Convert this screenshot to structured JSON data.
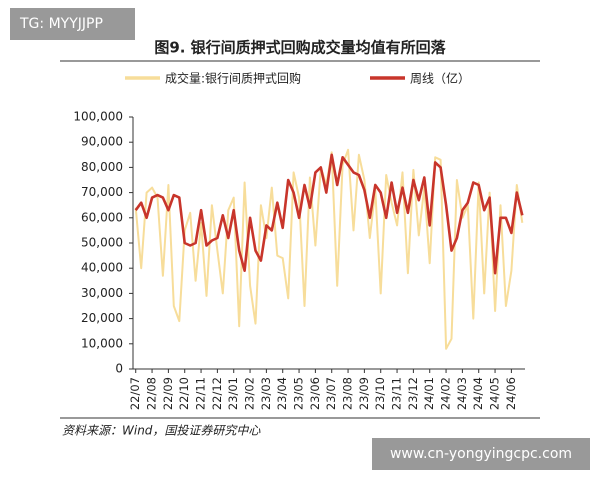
{
  "watermark_top": "TG: MYYJJPP",
  "watermark_bottom": "www.cn-yongyingcpc.com",
  "chart_data": {
    "type": "line",
    "title": "图9. 银行间质押式回购成交量均值有所回落",
    "source": "资料来源：Wind，国投证券研究中心",
    "categories": [
      "22/07",
      null,
      null,
      "22/08",
      null,
      null,
      "22/09",
      null,
      null,
      "22/10",
      null,
      null,
      "22/11",
      null,
      null,
      "22/12",
      null,
      null,
      "23/01",
      null,
      null,
      "23/02",
      null,
      null,
      "23/03",
      null,
      null,
      "23/04",
      null,
      null,
      "23/05",
      null,
      null,
      "23/06",
      null,
      null,
      "23/07",
      null,
      null,
      "23/08",
      null,
      null,
      "23/09",
      null,
      null,
      "23/10",
      null,
      null,
      "23/11",
      null,
      null,
      "23/12",
      null,
      null,
      "24/01",
      null,
      null,
      "24/02",
      null,
      null,
      "24/03",
      null,
      null,
      "24/04",
      null,
      null,
      "24/05",
      null,
      null,
      "24/06",
      null,
      null
    ],
    "series": [
      {
        "name": "成交量:银行间质押式回购",
        "color": "#f7dd9a",
        "width": 2,
        "values": [
          64000,
          40000,
          70000,
          72000,
          68000,
          37000,
          73000,
          25000,
          19000,
          55000,
          62000,
          35000,
          58000,
          29000,
          65000,
          47000,
          30000,
          63000,
          68000,
          17000,
          74000,
          33000,
          18000,
          65000,
          52000,
          72000,
          45000,
          44000,
          28000,
          78000,
          68000,
          25000,
          76000,
          49000,
          80000,
          73000,
          86000,
          33000,
          81000,
          87000,
          55000,
          85000,
          75000,
          52000,
          71000,
          30000,
          77000,
          66000,
          57000,
          78000,
          38000,
          79000,
          53000,
          72000,
          42000,
          84000,
          83000,
          8000,
          12000,
          75000,
          60000,
          65000,
          20000,
          74000,
          30000,
          70000,
          23000,
          65000,
          25000,
          39000,
          73000,
          58000
        ]
      },
      {
        "name": "周线（亿）",
        "color": "#c8352b",
        "width": 2.6,
        "values": [
          63000,
          66000,
          60000,
          68000,
          69000,
          68000,
          63000,
          69000,
          68000,
          50000,
          49000,
          50000,
          63000,
          49000,
          51000,
          52000,
          61000,
          52000,
          63000,
          47000,
          39000,
          60000,
          47000,
          43000,
          57000,
          55000,
          66000,
          56000,
          75000,
          70000,
          60000,
          73000,
          64000,
          78000,
          80000,
          70000,
          85000,
          73000,
          84000,
          81000,
          78000,
          77000,
          71000,
          60000,
          73000,
          70000,
          60000,
          74000,
          62000,
          72000,
          62000,
          75000,
          67000,
          76000,
          57000,
          82000,
          80000,
          65000,
          47000,
          52000,
          63000,
          66000,
          74000,
          73000,
          63000,
          68000,
          38000,
          60000,
          60000,
          54000,
          70000,
          61000
        ]
      }
    ],
    "ylim": [
      0,
      100000
    ],
    "yticks": [
      0,
      {
        "value": 10000,
        "label": "10,000"
      },
      {
        "value": 20000,
        "label": "20,000"
      },
      {
        "value": 30000,
        "label": "30,000"
      },
      {
        "value": 40000,
        "label": "40,000"
      },
      {
        "value": 50000,
        "label": "50,000"
      },
      {
        "value": 60000,
        "label": "60,000"
      },
      {
        "value": 70000,
        "label": "70,000"
      },
      {
        "value": 80000,
        "label": "80,000"
      },
      {
        "value": 90000,
        "label": "90,000"
      },
      {
        "value": 100000,
        "label": "100,000"
      }
    ],
    "grid": false
  }
}
